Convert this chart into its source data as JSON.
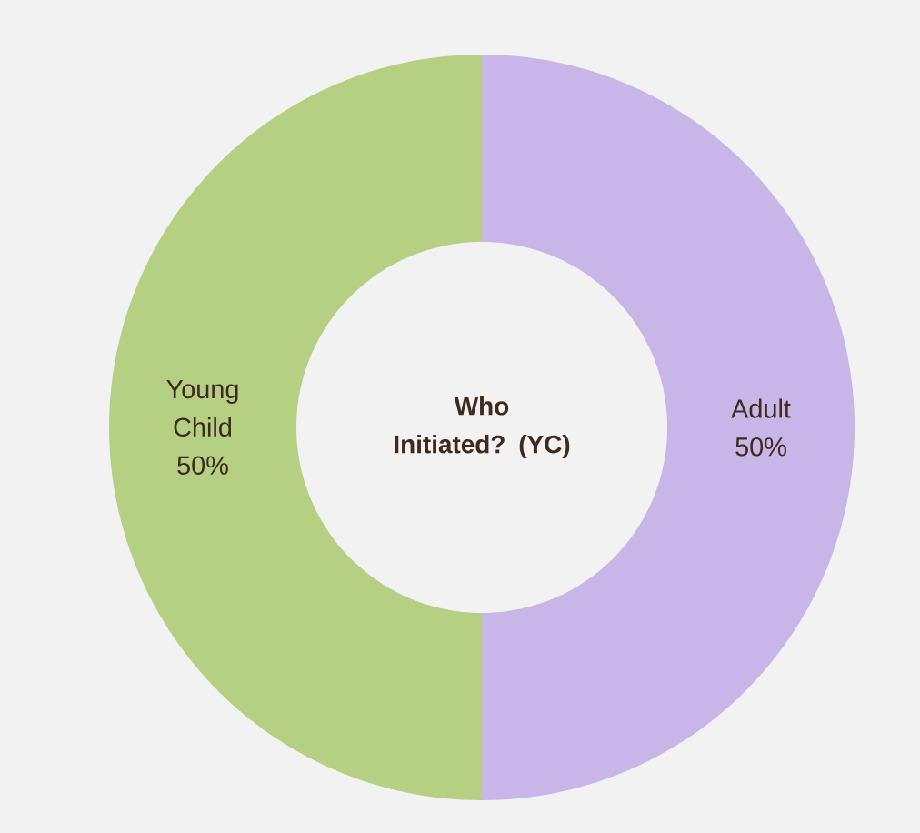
{
  "chart_data": {
    "type": "donut",
    "title": "Who Initiated? (YC)",
    "categories": [
      "Adult",
      "Young Child"
    ],
    "values": [
      50,
      50
    ],
    "value_labels": [
      "50%",
      "50%"
    ],
    "colors": [
      "#c9b6e9",
      "#b5cf83"
    ]
  }
}
